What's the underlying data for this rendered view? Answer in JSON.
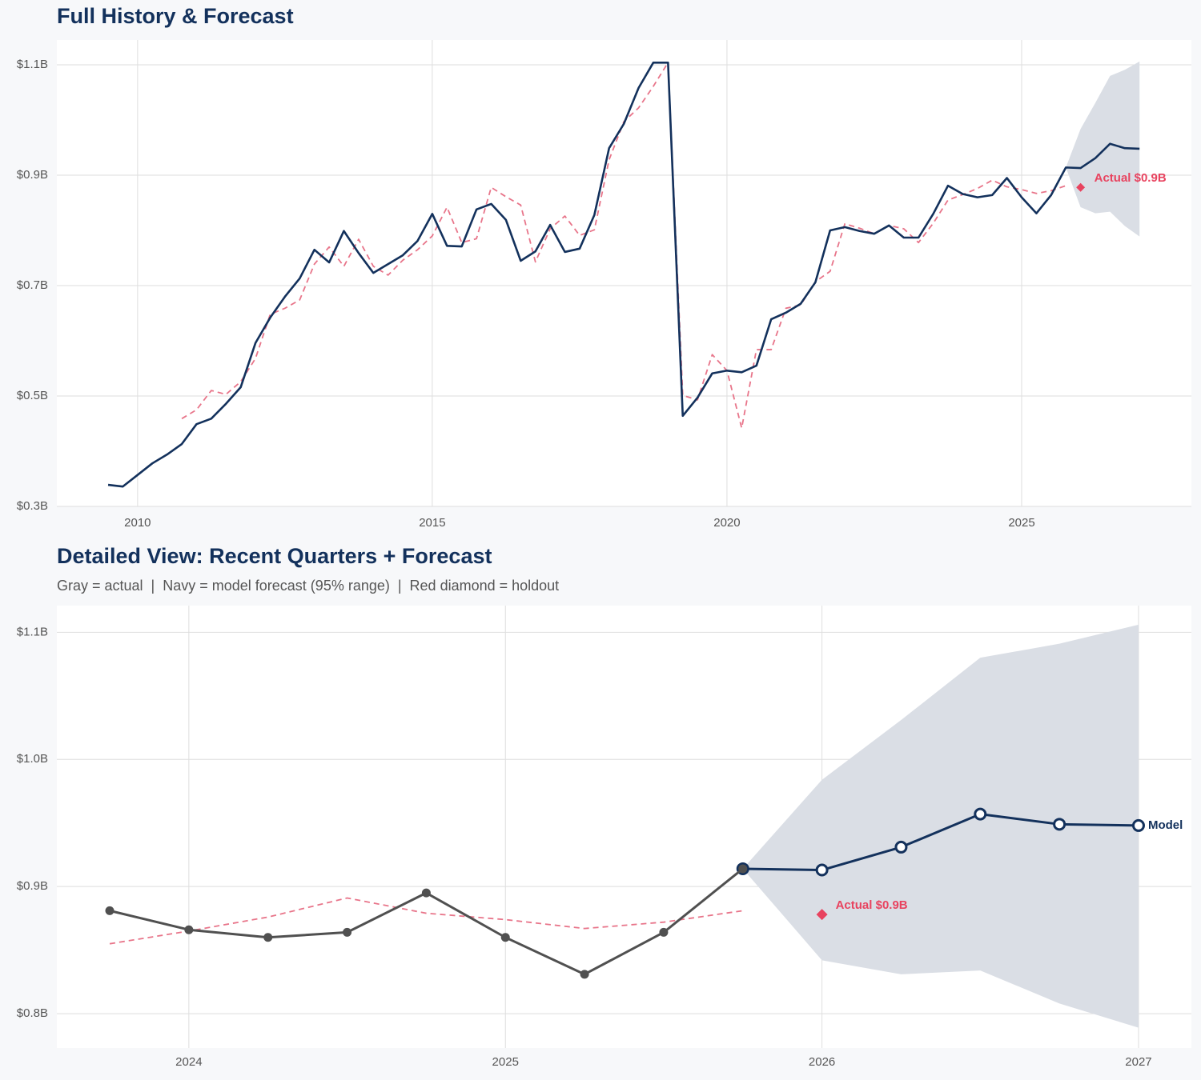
{
  "chart_data": [
    {
      "type": "line",
      "title": "Full History & Forecast",
      "x": [
        2009.5,
        2009.75,
        2010,
        2010.25,
        2010.5,
        2010.75,
        2011,
        2011.25,
        2011.5,
        2011.75,
        2012,
        2012.25,
        2012.5,
        2012.75,
        2013,
        2013.25,
        2013.5,
        2013.75,
        2014,
        2014.25,
        2014.5,
        2014.75,
        2015,
        2015.25,
        2015.5,
        2015.75,
        2016,
        2016.25,
        2016.5,
        2016.75,
        2017,
        2017.25,
        2017.5,
        2017.75,
        2018,
        2018.25,
        2018.5,
        2018.75,
        2019,
        2019.25,
        2019.5,
        2019.75,
        2020,
        2020.25,
        2020.5,
        2020.75,
        2021,
        2021.25,
        2021.5,
        2021.75,
        2022,
        2022.25,
        2022.5,
        2022.75,
        2023,
        2023.25,
        2023.5,
        2023.75,
        2024,
        2024.25,
        2024.5,
        2024.75,
        2025,
        2025.25,
        2025.5,
        2025.75,
        2026,
        2026.25,
        2026.5,
        2026.75,
        2027
      ],
      "band": {
        "color": "#dadee5",
        "x": [
          2025.75,
          2026,
          2026.25,
          2026.5,
          2026.75,
          2027
        ],
        "upper": [
          0.914,
          0.984,
          1.031,
          1.08,
          1.091,
          1.106
        ],
        "lower": [
          0.914,
          0.842,
          0.831,
          0.834,
          0.808,
          0.789
        ]
      },
      "series": [
        {
          "color": "#e8758a",
          "dash": true,
          "values": [
            null,
            null,
            null,
            null,
            null,
            0.459,
            0.475,
            0.51,
            0.503,
            0.526,
            0.568,
            0.648,
            0.659,
            0.674,
            0.739,
            0.77,
            0.735,
            0.784,
            0.735,
            0.719,
            0.746,
            0.765,
            0.79,
            0.842,
            0.778,
            0.785,
            0.878,
            0.861,
            0.846,
            0.743,
            0.803,
            0.826,
            0.791,
            0.801,
            0.928,
            0.997,
            1.022,
            1.061,
            1.104,
            0.501,
            0.493,
            0.575,
            0.546,
            0.442,
            0.584,
            0.584,
            0.659,
            0.665,
            0.707,
            0.726,
            0.812,
            0.804,
            0.794,
            0.809,
            0.803,
            0.778,
            0.813,
            0.855,
            0.865,
            0.876,
            0.891,
            0.879,
            0.874,
            0.867,
            0.872,
            0.881,
            null,
            null,
            null,
            null,
            null
          ]
        },
        {
          "color": "#13315c",
          "values": [
            0.339,
            0.336,
            0.357,
            0.378,
            0.394,
            0.413,
            0.449,
            0.459,
            0.486,
            0.516,
            0.596,
            0.642,
            0.68,
            0.713,
            0.765,
            0.742,
            0.799,
            0.759,
            0.723,
            0.739,
            0.755,
            0.781,
            0.83,
            0.772,
            0.771,
            0.838,
            0.848,
            0.819,
            0.745,
            0.762,
            0.81,
            0.761,
            0.767,
            0.828,
            0.949,
            0.993,
            1.058,
            1.104,
            1.104,
            0.464,
            0.497,
            0.541,
            0.546,
            0.543,
            0.555,
            0.639,
            0.651,
            0.667,
            0.706,
            0.8,
            0.806,
            0.799,
            0.794,
            0.809,
            0.787,
            0.787,
            0.83,
            0.881,
            0.866,
            0.86,
            0.864,
            0.895,
            0.86,
            0.831,
            0.864,
            0.914,
            0.913,
            0.931,
            0.957,
            0.949,
            0.948
          ]
        }
      ],
      "annotation": {
        "x": 2026,
        "y": 0.878,
        "label": "Actual $0.9B",
        "color": "#e8435f"
      },
      "xlim": [
        2008.63,
        2027.88
      ],
      "xticks": [
        2010,
        2015,
        2020,
        2025
      ],
      "ylim": [
        0.3,
        1.145
      ],
      "yticks": [
        {
          "value": 0.3,
          "label": "$0.3B"
        },
        {
          "value": 0.5,
          "label": "$0.5B"
        },
        {
          "value": 0.7,
          "label": "$0.7B"
        },
        {
          "value": 0.9,
          "label": "$0.9B"
        },
        {
          "value": 1.1,
          "label": "$1.1B"
        }
      ],
      "grid": true
    },
    {
      "type": "line",
      "title": "Detailed View: Recent Quarters + Forecast",
      "subtitle": "Gray = actual  |  Navy = model forecast (95% range)  |  Red diamond = holdout",
      "x": [
        2023.75,
        2024,
        2024.25,
        2024.5,
        2024.75,
        2025,
        2025.25,
        2025.5,
        2025.75,
        2026,
        2026.25,
        2026.5,
        2026.75,
        2027
      ],
      "band": {
        "color": "#dadee5",
        "x": [
          2025.75,
          2026,
          2026.25,
          2026.5,
          2026.75,
          2027
        ],
        "upper": [
          0.914,
          0.984,
          1.031,
          1.08,
          1.091,
          1.106
        ],
        "lower": [
          0.914,
          0.842,
          0.831,
          0.834,
          0.808,
          0.789
        ]
      },
      "series": [
        {
          "color": "#e8758a",
          "dash": true,
          "values": [
            0.855,
            0.865,
            0.876,
            0.891,
            0.879,
            0.874,
            0.867,
            0.872,
            0.881,
            null,
            null,
            null,
            null,
            null
          ]
        },
        {
          "name": "Model",
          "color": "#13315c",
          "markers": "hollow",
          "values": [
            null,
            null,
            null,
            null,
            null,
            null,
            null,
            null,
            0.914,
            0.913,
            0.931,
            0.957,
            0.949,
            0.948
          ]
        },
        {
          "color": "#505050",
          "markers": "filled",
          "values": [
            0.881,
            0.866,
            0.86,
            0.864,
            0.895,
            0.86,
            0.831,
            0.864,
            0.914,
            null,
            null,
            null,
            null,
            null
          ]
        }
      ],
      "annotation": {
        "x": 2026,
        "y": 0.878,
        "label": "Actual $0.9B",
        "color": "#e8435f"
      },
      "xlim": [
        2023.583,
        2027.167
      ],
      "xticks": [
        2024,
        2025,
        2026,
        2027
      ],
      "ylim": [
        0.773,
        1.121
      ],
      "yticks": [
        {
          "value": 0.8,
          "label": "$0.8B"
        },
        {
          "value": 0.9,
          "label": "$0.9B"
        },
        {
          "value": 1.0,
          "label": "$1.0B"
        },
        {
          "value": 1.1,
          "label": "$1.1B"
        }
      ],
      "grid": true
    }
  ]
}
